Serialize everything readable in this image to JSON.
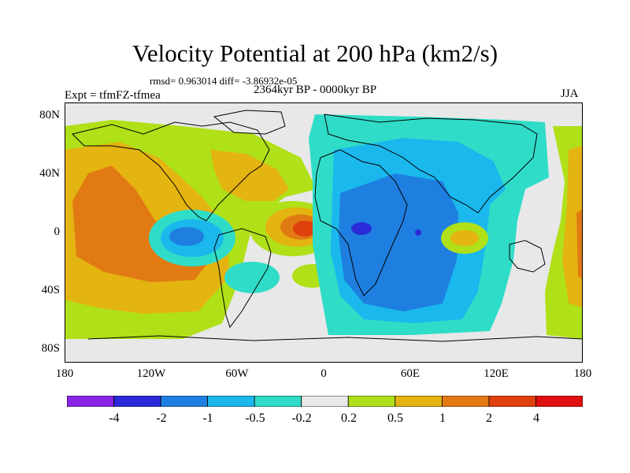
{
  "title": "Velocity Potential at 200 hPa (km2/s)",
  "stats": "rmsd= 0.963014 diff= -3.86932e-05",
  "experiment": "Expt = tfmFZ-tfmea",
  "period": "2364kyr BP - 0000kyr BP",
  "season": "JJA",
  "axes": {
    "y_ticks": [
      "80N",
      "40N",
      "0",
      "40S",
      "80S"
    ],
    "x_ticks": [
      "180",
      "120W",
      "60W",
      "0",
      "60E",
      "120E",
      "180"
    ]
  },
  "colorbar": {
    "labels": [
      "-4",
      "-2",
      "-1",
      "-0.5",
      "-0.2",
      "0.2",
      "0.5",
      "1",
      "2",
      "4"
    ],
    "colors": [
      "#8b24e6",
      "#2a2ad8",
      "#1e7fe0",
      "#1ab8ec",
      "#2fdcc8",
      "#e8e8e8",
      "#b0e018",
      "#e4b410",
      "#e27a14",
      "#e0400c",
      "#e01010"
    ]
  },
  "palette": {
    "background": "#e8e8e8",
    "neutral": "#e8e8e8",
    "pos_weak": "#b0e018",
    "pos_mid": "#e4b410",
    "pos_strong": "#e27a14",
    "pos_vstrong": "#e0400c",
    "neg_weak": "#2fdcc8",
    "neg_mid": "#1ab8ec",
    "neg_strong": "#1e7fe0",
    "neg_vstrong": "#2a2ad8"
  }
}
